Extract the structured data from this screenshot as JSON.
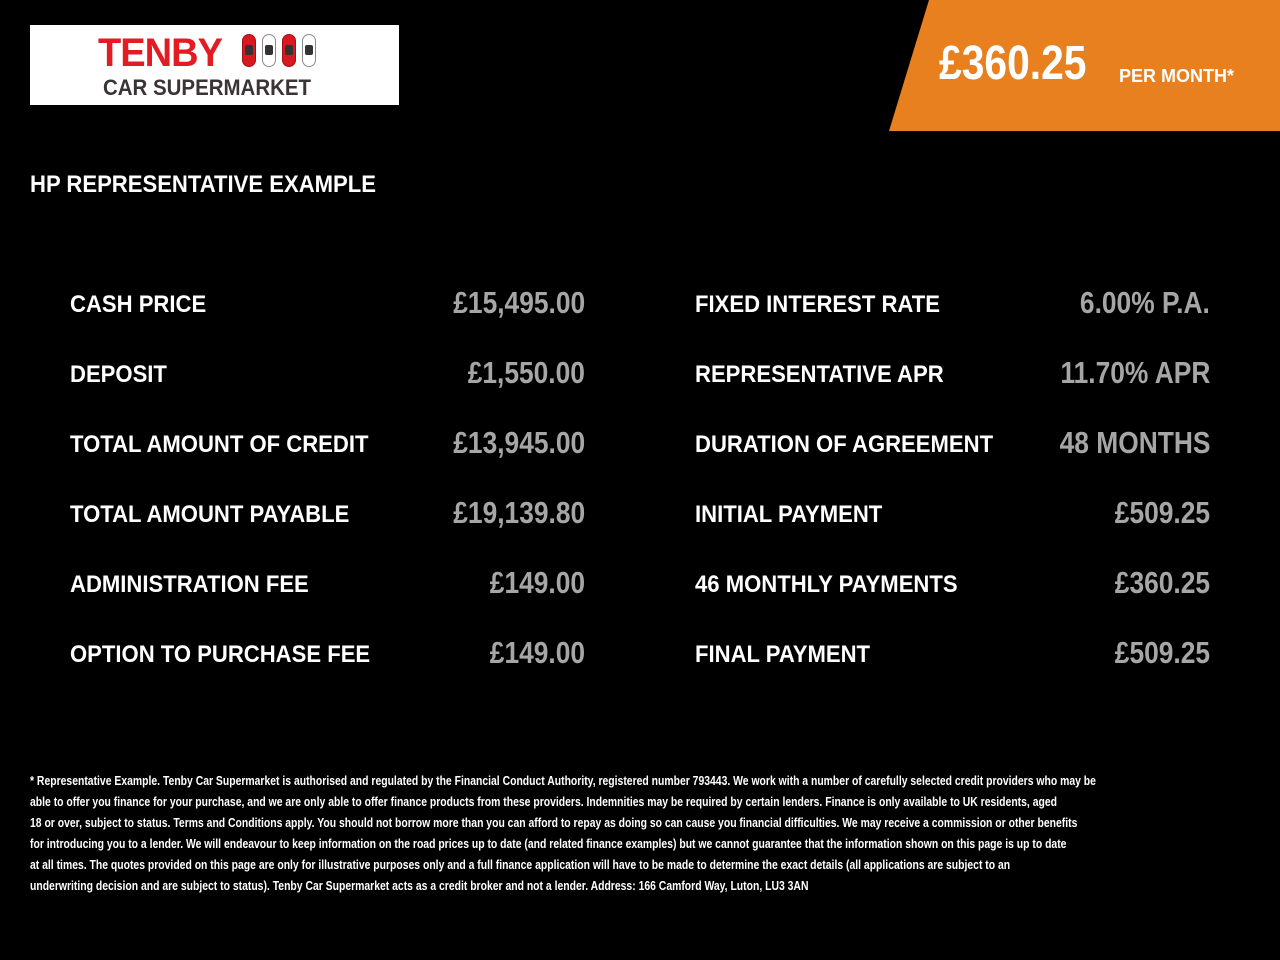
{
  "logo": {
    "line1": "TENBY",
    "line2": "CAR SUPERMARKET"
  },
  "banner": {
    "amount": "£360.25",
    "suffix": "PER MONTH*",
    "color": "#e8801f"
  },
  "heading": "HP REPRESENTATIVE EXAMPLE",
  "left": [
    {
      "label": "CASH PRICE",
      "value": "£15,495.00"
    },
    {
      "label": "DEPOSIT",
      "value": "£1,550.00"
    },
    {
      "label": "TOTAL AMOUNT OF CREDIT",
      "value": "£13,945.00"
    },
    {
      "label": "TOTAL AMOUNT PAYABLE",
      "value": "£19,139.80"
    },
    {
      "label": "ADMINISTRATION FEE",
      "value": "£149.00"
    },
    {
      "label": "OPTION TO PURCHASE FEE",
      "value": "£149.00"
    }
  ],
  "right": [
    {
      "label": "FIXED INTEREST RATE",
      "value": "6.00% P.A."
    },
    {
      "label": "REPRESENTATIVE APR",
      "value": "11.70% APR"
    },
    {
      "label": "DURATION OF AGREEMENT",
      "value": "48 MONTHS"
    },
    {
      "label": "INITIAL PAYMENT",
      "value": "£509.25"
    },
    {
      "label": "46 MONTHLY PAYMENTS",
      "value": "£360.25"
    },
    {
      "label": "FINAL PAYMENT",
      "value": "£509.25"
    }
  ],
  "footer": [
    "* Representative Example. Tenby Car Supermarket is authorised and regulated by the Financial Conduct Authority, registered number 793443. We work with a number of carefully selected credit providers who may be",
    "able to offer you finance for your purchase, and we are only able to offer finance products from these providers. Indemnities may be required by certain lenders. Finance is only available to UK residents, aged",
    "18 or over, subject to status. Terms and Conditions apply. You should not borrow more than you can afford to repay as doing so can cause you financial difficulties. We may receive a commission or other benefits",
    "for introducing you to a lender. We will endeavour to keep information on the road prices up to date (and related finance examples) but we cannot guarantee that the information shown on this page is up to date",
    "at all times. The quotes provided on this page are only for illustrative purposes only and a full finance application will have to be made to determine the exact details (all applications are subject to an",
    "underwriting decision and are subject to status). Tenby Car Supermarket acts as a credit broker and not a lender. Address: 166 Camford Way, Luton, LU3 3AN"
  ]
}
